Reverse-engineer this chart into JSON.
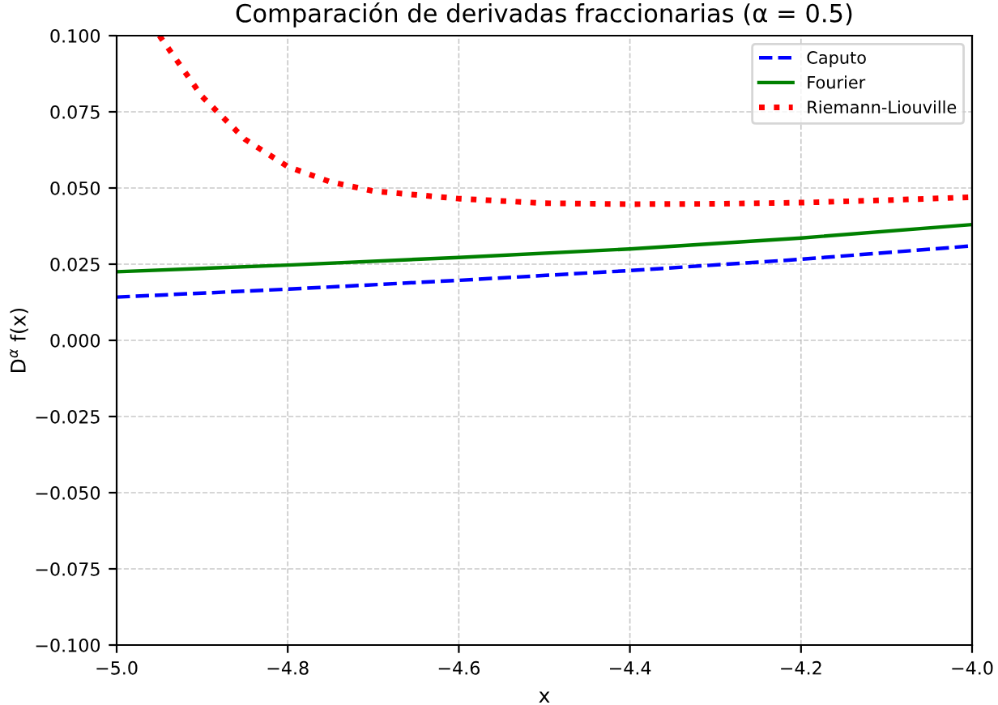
{
  "chart_data": {
    "type": "line",
    "title": "Comparación de derivadas fraccionarias (α = 0.5)",
    "xlabel": "x",
    "ylabel": "D$^{α}$ f(x)",
    "series": [
      {
        "name": "Caputo",
        "color": "#0000ff",
        "line_style": "dashed",
        "x": [
          -5.0,
          -4.8,
          -4.6,
          -4.4,
          -4.2,
          -4.0
        ],
        "values": [
          0.0142,
          0.0168,
          0.0197,
          0.0229,
          0.0266,
          0.031
        ]
      },
      {
        "name": "Fourier",
        "color": "#008000",
        "line_style": "solid",
        "x": [
          -5.0,
          -4.8,
          -4.6,
          -4.4,
          -4.2,
          -4.0
        ],
        "values": [
          0.0225,
          0.0247,
          0.0272,
          0.03,
          0.0336,
          0.038
        ]
      },
      {
        "name": "Riemann-Liouville",
        "color": "#ff0000",
        "line_style": "dotted",
        "x": [
          -4.95,
          -4.93,
          -4.9,
          -4.85,
          -4.8,
          -4.75,
          -4.7,
          -4.6,
          -4.5,
          -4.4,
          -4.3,
          -4.2,
          -4.1,
          -4.0
        ],
        "values": [
          0.1,
          0.092,
          0.08,
          0.066,
          0.057,
          0.052,
          0.049,
          0.0465,
          0.045,
          0.0447,
          0.0448,
          0.0452,
          0.046,
          0.047
        ]
      }
    ],
    "xlim": [
      -5.0,
      -4.0
    ],
    "xticks": [
      {
        "value": -5.0,
        "label": "−5.0"
      },
      {
        "value": -4.8,
        "label": "−4.8"
      },
      {
        "value": -4.6,
        "label": "−4.6"
      },
      {
        "value": -4.4,
        "label": "−4.4"
      },
      {
        "value": -4.2,
        "label": "−4.2"
      },
      {
        "value": -4.0,
        "label": "−4.0"
      }
    ],
    "ylim": [
      -0.1,
      0.1
    ],
    "yticks": [
      {
        "value": -0.1,
        "label": "−0.100"
      },
      {
        "value": -0.075,
        "label": "−0.075"
      },
      {
        "value": -0.05,
        "label": "−0.050"
      },
      {
        "value": -0.025,
        "label": "−0.025"
      },
      {
        "value": 0,
        "label": "0.000"
      },
      {
        "value": 0.025,
        "label": "0.025"
      },
      {
        "value": 0.05,
        "label": "0.050"
      },
      {
        "value": 0.075,
        "label": "0.075"
      },
      {
        "value": 0.1,
        "label": "0.100"
      }
    ],
    "grid": true,
    "legend": "top right"
  }
}
